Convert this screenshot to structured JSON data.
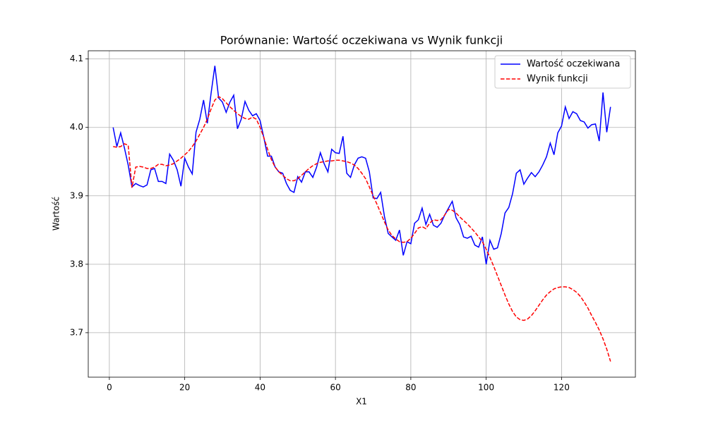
{
  "chart_data": {
    "type": "line",
    "title": "Porównanie: Wartość oczekiwana vs Wynik funkcji",
    "xlabel": "X1",
    "ylabel": "Wartość",
    "x": [
      1,
      2,
      3,
      4,
      5,
      6,
      7,
      8,
      9,
      10,
      11,
      12,
      13,
      14,
      15,
      16,
      17,
      18,
      19,
      20,
      21,
      22,
      23,
      24,
      25,
      26,
      27,
      28,
      29,
      30,
      31,
      32,
      33,
      34,
      35,
      36,
      37,
      38,
      39,
      40,
      41,
      42,
      43,
      44,
      45,
      46,
      47,
      48,
      49,
      50,
      51,
      52,
      53,
      54,
      55,
      56,
      57,
      58,
      59,
      60,
      61,
      62,
      63,
      64,
      65,
      66,
      67,
      68,
      69,
      70,
      71,
      72,
      73,
      74,
      75,
      76,
      77,
      78,
      79,
      80,
      81,
      82,
      83,
      84,
      85,
      86,
      87,
      88,
      89,
      90,
      91,
      92,
      93,
      94,
      95,
      96,
      97,
      98,
      99,
      100,
      101,
      102,
      103,
      104,
      105,
      106,
      107,
      108,
      109,
      110,
      111,
      112,
      113,
      114,
      115,
      116,
      117,
      118,
      119,
      120,
      121,
      122,
      123,
      124,
      125,
      126,
      127,
      128,
      129,
      130,
      131,
      132,
      133
    ],
    "series": [
      {
        "name": "Wartość oczekiwana",
        "color": "#0000ff",
        "dash": false,
        "values": [
          4.0,
          3.972,
          3.992,
          3.97,
          3.945,
          3.913,
          3.918,
          3.915,
          3.913,
          3.916,
          3.938,
          3.94,
          3.921,
          3.921,
          3.918,
          3.961,
          3.952,
          3.938,
          3.914,
          3.955,
          3.942,
          3.932,
          3.993,
          4.012,
          4.04,
          4.006,
          4.05,
          4.09,
          4.043,
          4.037,
          4.022,
          4.037,
          4.047,
          3.998,
          4.012,
          4.038,
          4.025,
          4.017,
          4.02,
          4.01,
          3.985,
          3.958,
          3.958,
          3.942,
          3.935,
          3.933,
          3.918,
          3.908,
          3.905,
          3.928,
          3.92,
          3.935,
          3.935,
          3.927,
          3.942,
          3.963,
          3.947,
          3.935,
          3.968,
          3.963,
          3.962,
          3.987,
          3.933,
          3.927,
          3.945,
          3.955,
          3.957,
          3.955,
          3.935,
          3.897,
          3.896,
          3.905,
          3.87,
          3.845,
          3.84,
          3.835,
          3.85,
          3.813,
          3.833,
          3.83,
          3.86,
          3.865,
          3.882,
          3.858,
          3.873,
          3.857,
          3.854,
          3.86,
          3.872,
          3.882,
          3.892,
          3.868,
          3.858,
          3.84,
          3.838,
          3.841,
          3.828,
          3.825,
          3.84,
          3.8,
          3.835,
          3.822,
          3.824,
          3.845,
          3.875,
          3.883,
          3.903,
          3.933,
          3.938,
          3.917,
          3.926,
          3.934,
          3.928,
          3.935,
          3.945,
          3.957,
          3.977,
          3.96,
          3.992,
          4.002,
          4.03,
          4.013,
          4.023,
          4.02,
          4.01,
          4.008,
          3.999,
          4.004,
          4.005,
          3.98,
          4.051,
          3.993,
          4.03
        ]
      },
      {
        "name": "Wynik funkcji",
        "color": "#ff0000",
        "dash": true,
        "values": [
          3.972,
          3.971,
          3.972,
          3.976,
          3.974,
          3.912,
          3.942,
          3.943,
          3.942,
          3.94,
          3.94,
          3.942,
          3.946,
          3.946,
          3.944,
          3.945,
          3.947,
          3.951,
          3.955,
          3.96,
          3.965,
          3.972,
          3.98,
          3.99,
          4.0,
          4.012,
          4.027,
          4.04,
          4.045,
          4.042,
          4.036,
          4.03,
          4.025,
          4.02,
          4.016,
          4.013,
          4.012,
          4.015,
          4.012,
          4.0,
          3.985,
          3.968,
          3.953,
          3.942,
          3.935,
          3.93,
          3.925,
          3.922,
          3.922,
          3.925,
          3.93,
          3.935,
          3.94,
          3.944,
          3.947,
          3.949,
          3.95,
          3.951,
          3.951,
          3.952,
          3.952,
          3.951,
          3.95,
          3.948,
          3.945,
          3.94,
          3.933,
          3.925,
          3.913,
          3.9,
          3.888,
          3.875,
          3.862,
          3.85,
          3.842,
          3.837,
          3.833,
          3.832,
          3.833,
          3.838,
          3.845,
          3.853,
          3.855,
          3.852,
          3.86,
          3.865,
          3.864,
          3.865,
          3.872,
          3.88,
          3.879,
          3.875,
          3.869,
          3.864,
          3.859,
          3.853,
          3.847,
          3.84,
          3.833,
          3.822,
          3.81,
          3.797,
          3.783,
          3.769,
          3.755,
          3.742,
          3.731,
          3.723,
          3.719,
          3.718,
          3.72,
          3.725,
          3.732,
          3.74,
          3.748,
          3.755,
          3.76,
          3.764,
          3.766,
          3.767,
          3.767,
          3.766,
          3.763,
          3.759,
          3.753,
          3.745,
          3.736,
          3.725,
          3.715,
          3.704,
          3.691,
          3.676,
          3.658
        ]
      }
    ],
    "xlim": [
      -5.6,
      139.6
    ],
    "xticks": [
      0,
      20,
      40,
      60,
      80,
      100,
      120
    ],
    "ylim": [
      3.635,
      4.112
    ],
    "yticks": [
      3.7,
      3.8,
      3.9,
      {
        "value": 4,
        "label": "4.0"
      },
      4.1
    ],
    "grid": true,
    "legend": "upper-right"
  }
}
